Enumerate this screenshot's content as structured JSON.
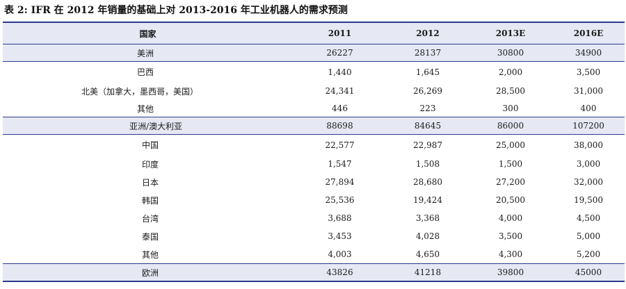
{
  "title": "表 2:  IFR 在 2012 年销量的基础上对 2013-2016 年工业机器人的需求预测",
  "table": {
    "headers": [
      "国家",
      "2011",
      "2012",
      "2013E",
      "2016E"
    ],
    "rows": [
      {
        "kind": "group",
        "label": "美洲",
        "values": [
          "26227",
          "28137",
          "30800",
          "34900"
        ]
      },
      {
        "kind": "item",
        "label": "巴西",
        "values": [
          "1,440",
          "1,645",
          "2,000",
          "3,500"
        ]
      },
      {
        "kind": "item",
        "label": "北美（加拿大，墨西哥，美国）",
        "values": [
          "24,341",
          "26,269",
          "28,500",
          "31,000"
        ]
      },
      {
        "kind": "item",
        "label": "其他",
        "values": [
          "446",
          "223",
          "300",
          "400"
        ]
      },
      {
        "kind": "group",
        "label": "亚洲/澳大利亚",
        "values": [
          "88698",
          "84645",
          "86000",
          "107200"
        ]
      },
      {
        "kind": "item",
        "label": "中国",
        "values": [
          "22,577",
          "22,987",
          "25,000",
          "38,000"
        ]
      },
      {
        "kind": "item",
        "label": "印度",
        "values": [
          "1,547",
          "1,508",
          "1,500",
          "3,000"
        ]
      },
      {
        "kind": "item",
        "label": "日本",
        "values": [
          "27,894",
          "28,680",
          "27,200",
          "32,000"
        ]
      },
      {
        "kind": "item",
        "label": "韩国",
        "values": [
          "25,536",
          "19,424",
          "20,500",
          "19,500"
        ]
      },
      {
        "kind": "item",
        "label": "台湾",
        "values": [
          "3,688",
          "3,368",
          "4,000",
          "4,500"
        ]
      },
      {
        "kind": "item",
        "label": "泰国",
        "values": [
          "3,453",
          "4,028",
          "3,500",
          "5,000"
        ]
      },
      {
        "kind": "item",
        "label": "其他",
        "values": [
          "4,003",
          "4,650",
          "4,300",
          "5,200"
        ]
      },
      {
        "kind": "group",
        "label": "欧洲",
        "values": [
          "43826",
          "41218",
          "39800",
          "45000"
        ]
      }
    ]
  }
}
